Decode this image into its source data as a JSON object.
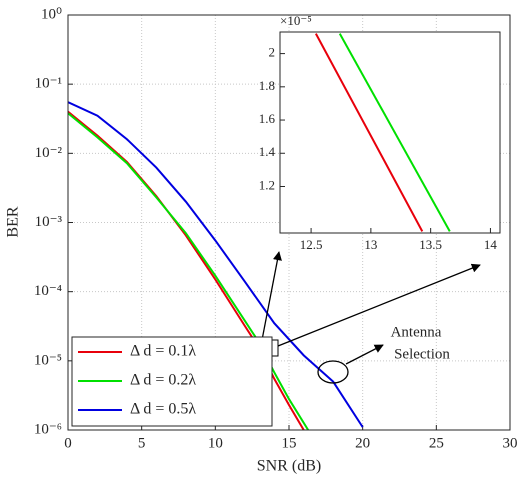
{
  "chart_data": [
    {
      "type": "line",
      "xlabel": "SNR (dB)",
      "ylabel": "BER",
      "log_y": true,
      "grid": true,
      "xlim": [
        0,
        30
      ],
      "xticks": [
        0,
        5,
        10,
        15,
        20,
        25,
        30
      ],
      "ylim": [
        1e-06,
        1
      ],
      "yticks": [
        {
          "value": 1e-06,
          "label": "10⁻⁶"
        },
        {
          "value": 1e-05,
          "label": "10⁻⁵"
        },
        {
          "value": 0.0001,
          "label": "10⁻⁴"
        },
        {
          "value": 0.001,
          "label": "10⁻³"
        },
        {
          "value": 0.01,
          "label": "10⁻²"
        },
        {
          "value": 0.1,
          "label": "10⁻¹"
        },
        {
          "value": 1,
          "label": "10⁰"
        }
      ],
      "legend": "lower left",
      "series": [
        {
          "name": "Δ d =  0.1λ",
          "color": "#e8000b",
          "x": [
            0,
            2,
            4,
            6,
            8,
            10,
            12,
            13,
            14,
            15,
            16
          ],
          "values": [
            0.04,
            0.018,
            0.0075,
            0.0024,
            0.00065,
            0.00015,
            3.2e-05,
            1.5e-05,
            5.5e-06,
            2.3e-06,
            1e-06
          ]
        },
        {
          "name": "Δ d =  0.2λ",
          "color": "#00e000",
          "x": [
            0,
            2,
            4,
            6,
            8,
            10,
            12,
            13,
            14,
            15,
            16.3
          ],
          "values": [
            0.038,
            0.017,
            0.0072,
            0.0023,
            0.0007,
            0.00017,
            3.8e-05,
            1.8e-05,
            6.8e-06,
            2.8e-06,
            1e-06
          ]
        },
        {
          "name": "Δ d =  0.5λ",
          "color": "#0000e0",
          "x": [
            0,
            2,
            4,
            6,
            8,
            10,
            12,
            14,
            16,
            18,
            20
          ],
          "values": [
            0.055,
            0.035,
            0.016,
            0.0062,
            0.002,
            0.00055,
            0.00014,
            3.5e-05,
            1.2e-05,
            5e-06,
            1.1e-06
          ]
        }
      ],
      "annotation": [
        "Antenna",
        "Selection"
      ]
    },
    {
      "type": "line",
      "exponent_label": "×10⁻⁵",
      "xlim": [
        12.24,
        14.08
      ],
      "xticks": [
        12.5,
        13,
        13.5,
        14
      ],
      "ylim": [
        0.92,
        2.13
      ],
      "yticks": [
        1.2,
        1.4,
        1.6,
        1.8,
        2
      ],
      "series": [
        {
          "color": "#e8000b",
          "x": [
            12.54,
            13.43
          ],
          "values": [
            2.12,
            0.93
          ]
        },
        {
          "color": "#00e000",
          "x": [
            12.74,
            13.66
          ],
          "values": [
            2.12,
            0.93
          ]
        }
      ]
    }
  ]
}
